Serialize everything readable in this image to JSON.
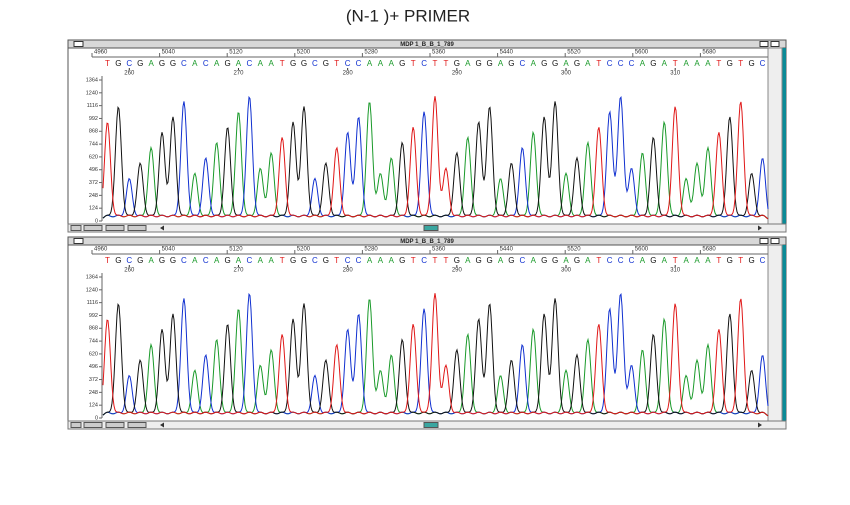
{
  "title": "(N-1 )+ PRIMER",
  "base_colors": {
    "A": "#1a9a2a",
    "C": "#1030d0",
    "G": "#111111",
    "T": "#e01818"
  },
  "windows": [
    {
      "title": "MDP 1_B_B_1_789",
      "scan_ticks": [
        "4960",
        "5040",
        "5120",
        "5200",
        "5280",
        "5360",
        "5440",
        "5520",
        "5600",
        "5680"
      ],
      "bases": [
        "T",
        "G",
        "C",
        "G",
        "A",
        "G",
        "G",
        "C",
        "A",
        "C",
        "A",
        "G",
        "A",
        "C",
        "A",
        "A",
        "T",
        "G",
        "G",
        "C",
        "G",
        "T",
        "C",
        "C",
        "A",
        "A",
        "A",
        "G",
        "T",
        "C",
        "T",
        "T",
        "G",
        "A",
        "G",
        "G",
        "A",
        "G",
        "C",
        "A",
        "G",
        "G",
        "A",
        "G",
        "A",
        "T",
        "C",
        "C",
        "C",
        "A",
        "G",
        "A",
        "T",
        "A",
        "A",
        "A",
        "T",
        "G",
        "T",
        "G",
        "C"
      ],
      "positions": [
        260,
        270,
        280,
        290,
        300,
        310
      ],
      "y_labels": [
        1364,
        1240,
        1116,
        992,
        868,
        744,
        620,
        496,
        372,
        248,
        124,
        0
      ]
    },
    {
      "title": "MDP 1_B_B_1_789",
      "scan_ticks": [
        "4960",
        "5040",
        "5120",
        "5200",
        "5280",
        "5360",
        "5440",
        "5520",
        "5600",
        "5680"
      ],
      "bases": [
        "T",
        "G",
        "C",
        "G",
        "A",
        "G",
        "G",
        "C",
        "A",
        "C",
        "A",
        "G",
        "A",
        "C",
        "A",
        "A",
        "T",
        "G",
        "G",
        "C",
        "G",
        "T",
        "C",
        "C",
        "A",
        "A",
        "A",
        "G",
        "T",
        "C",
        "T",
        "T",
        "G",
        "A",
        "G",
        "G",
        "A",
        "G",
        "C",
        "A",
        "G",
        "G",
        "A",
        "G",
        "A",
        "T",
        "C",
        "C",
        "C",
        "A",
        "G",
        "A",
        "T",
        "A",
        "A",
        "A",
        "T",
        "G",
        "T",
        "G",
        "C"
      ],
      "positions": [
        260,
        270,
        280,
        290,
        300,
        310
      ],
      "y_labels": [
        1364,
        1240,
        1116,
        992,
        868,
        744,
        620,
        496,
        372,
        248,
        124,
        0
      ]
    }
  ]
}
